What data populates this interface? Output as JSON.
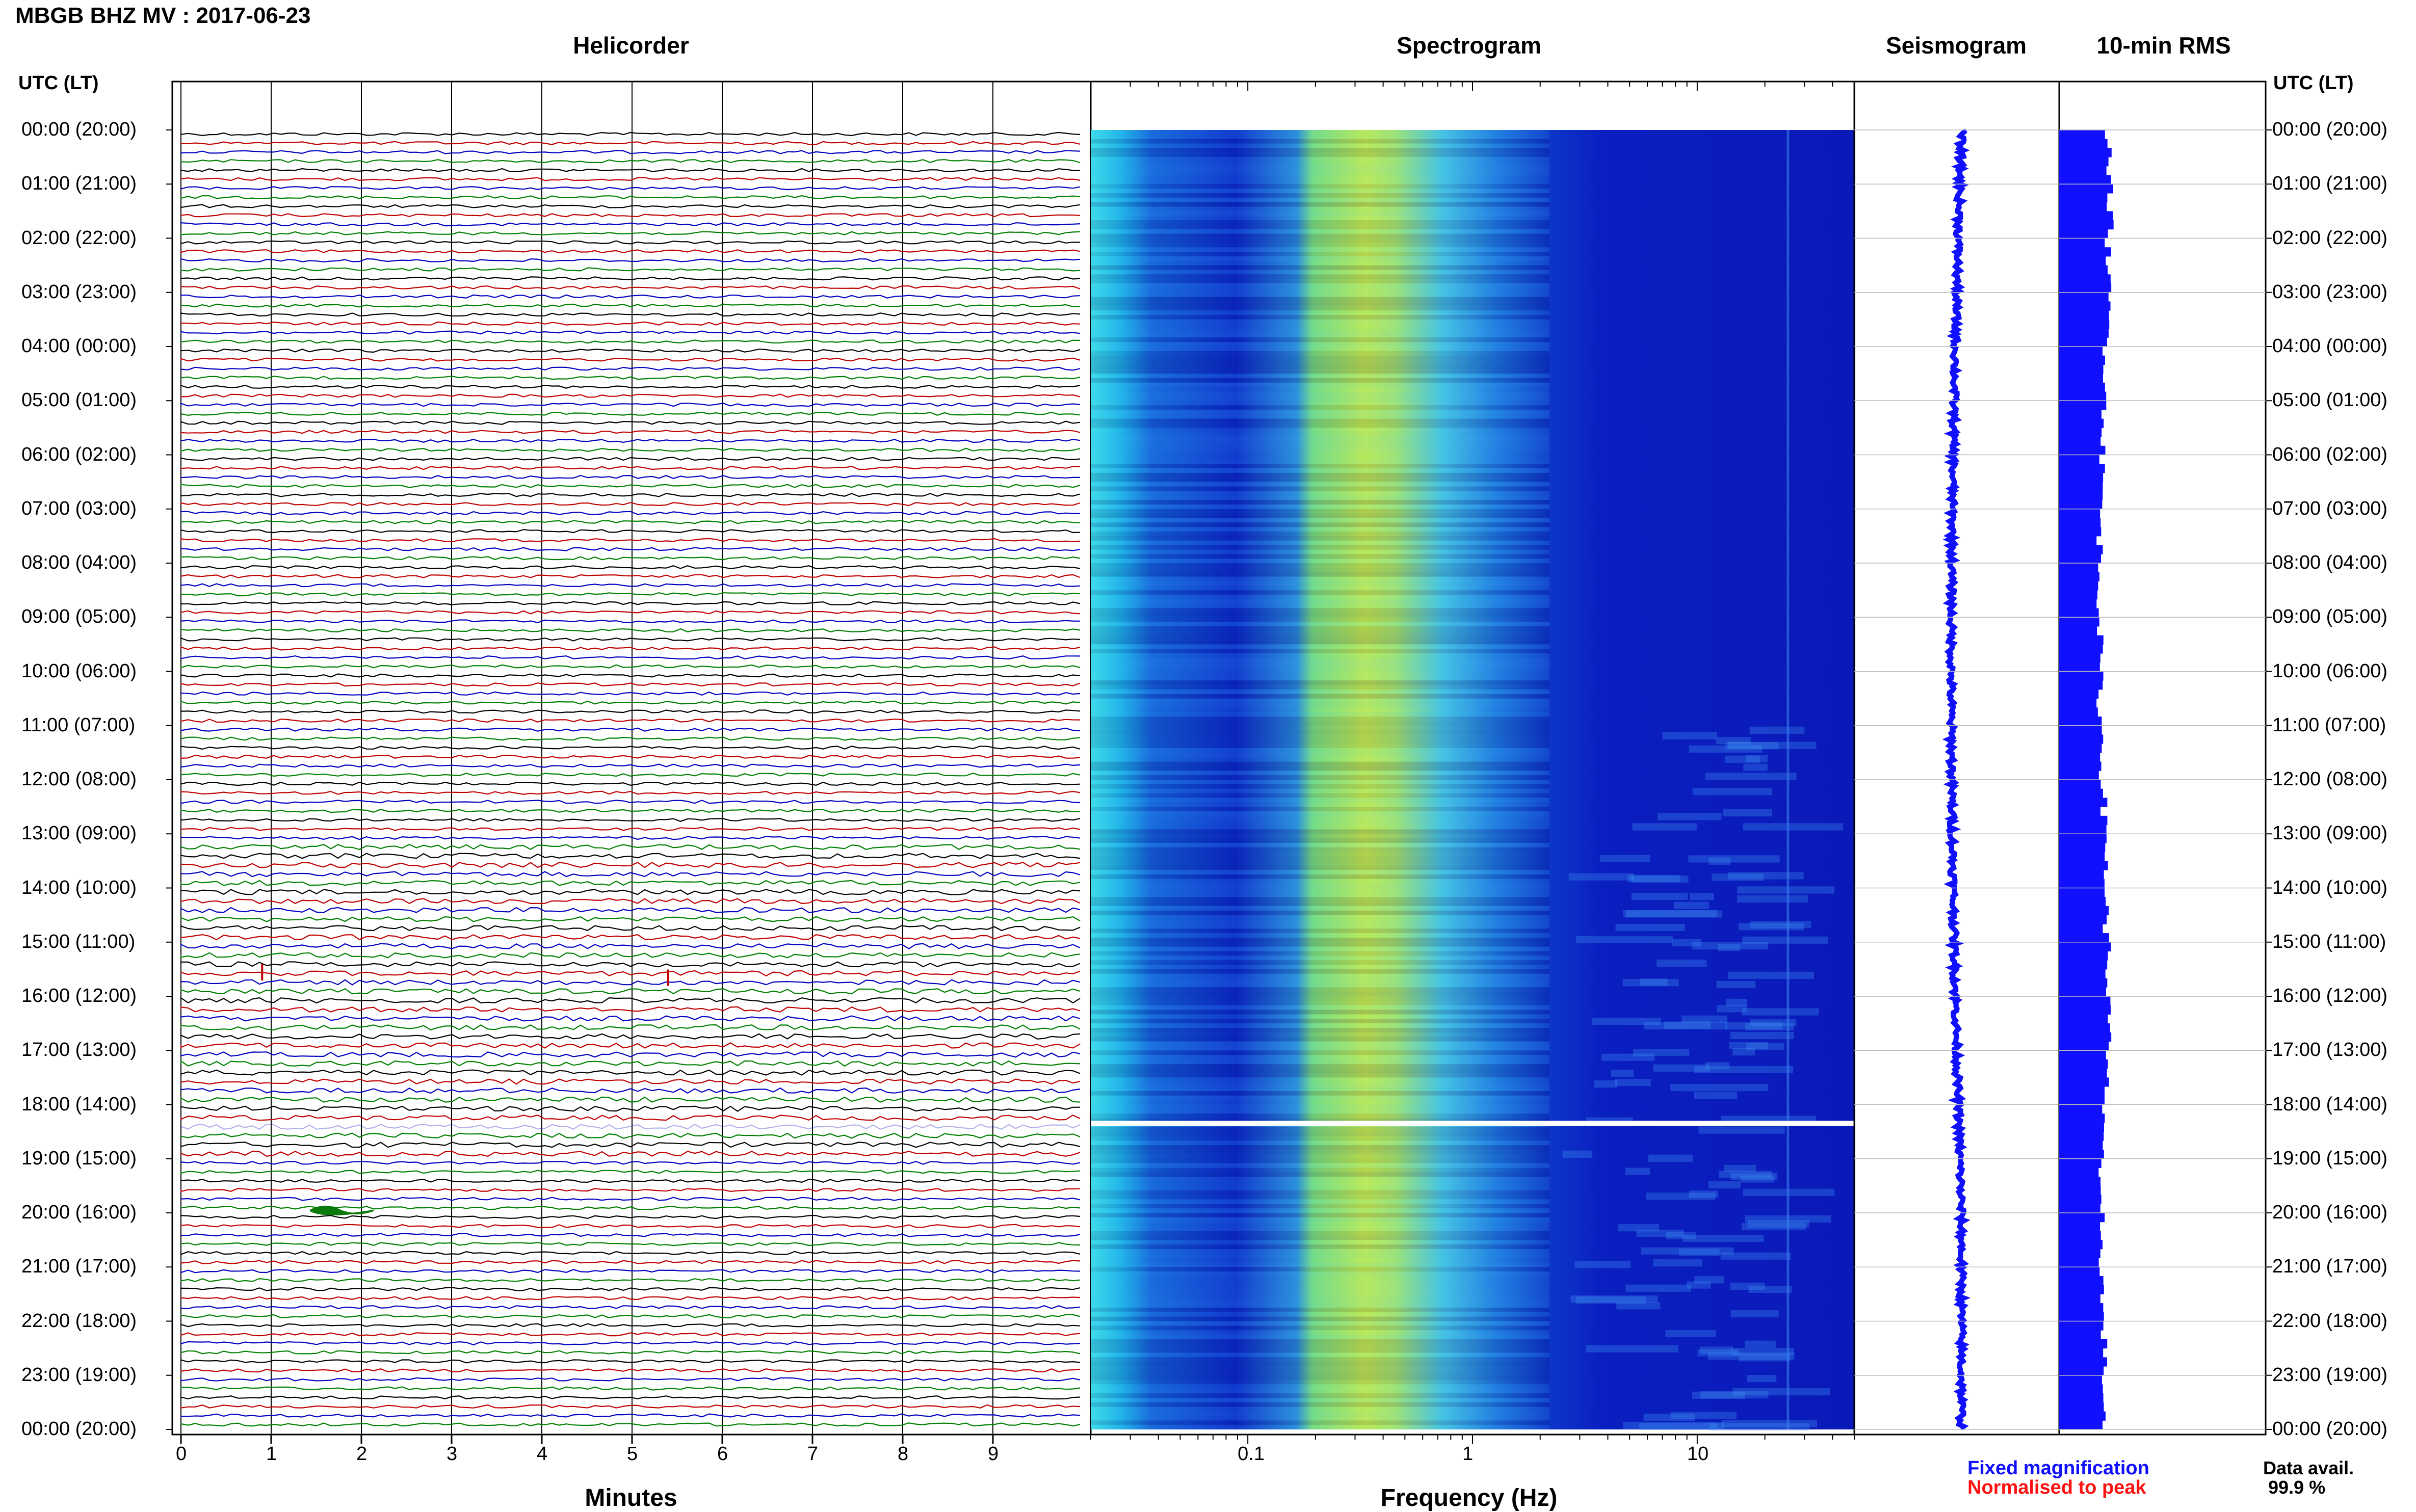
{
  "header": {
    "title": "MBGB BHZ MV : 2017-06-23"
  },
  "panels": {
    "helicorder": "Helicorder",
    "spectrogram": "Spectrogram",
    "seismogram": "Seismogram",
    "rms": "10-min RMS"
  },
  "axes": {
    "utc_left": "UTC (LT)",
    "utc_right": "UTC (LT)",
    "minutes_label": "Minutes",
    "frequency_label": "Frequency (Hz)"
  },
  "legend": {
    "fixed": "Fixed magnification",
    "normalised": "Normalised to peak",
    "data_avail_label": "Data avail.",
    "data_avail_value": "99.9 %"
  },
  "colors": {
    "trace_cycle": [
      "#000000",
      "#c00000",
      "#0000c0",
      "#008000"
    ],
    "spectrogram_base": "#0a1fc8",
    "fixed": "#1010ff",
    "normalised": "#ff1010"
  },
  "chart_data": {
    "type": "heatmap",
    "time_labels": [
      "00:00 (20:00)",
      "01:00 (21:00)",
      "02:00 (22:00)",
      "03:00 (23:00)",
      "04:00 (00:00)",
      "05:00 (01:00)",
      "06:00 (02:00)",
      "07:00 (03:00)",
      "08:00 (04:00)",
      "09:00 (05:00)",
      "10:00 (06:00)",
      "11:00 (07:00)",
      "12:00 (08:00)",
      "13:00 (09:00)",
      "14:00 (10:00)",
      "15:00 (11:00)",
      "16:00 (12:00)",
      "17:00 (13:00)",
      "18:00 (14:00)",
      "19:00 (15:00)",
      "20:00 (16:00)",
      "21:00 (17:00)",
      "22:00 (18:00)",
      "23:00 (19:00)",
      "00:00 (20:00)"
    ],
    "minutes_ticks": [
      "0",
      "1",
      "2",
      "3",
      "4",
      "5",
      "6",
      "7",
      "8",
      "9"
    ],
    "frequency_ticks": [
      {
        "label": "0.1",
        "value": 0.1
      },
      {
        "label": "1",
        "value": 1
      },
      {
        "label": "10",
        "value": 10
      }
    ],
    "frequency_range_hz": [
      0.02,
      50
    ],
    "minutes_range": [
      0,
      10
    ],
    "traces_per_hour": 6,
    "peak_frequency_hz": 0.35,
    "data_gap_utc_hour": 18.3,
    "events": [
      {
        "hour": 15.5,
        "minute": 0.9
      },
      {
        "hour": 15.6,
        "minute": 5.4
      },
      {
        "hour": 19.9,
        "minute": 1.6
      }
    ],
    "rms_per_hour": [
      1.2,
      1.25,
      1.2,
      1.2,
      1.15,
      1.1,
      1.05,
      1.0,
      1.0,
      1.0,
      1.0,
      1.05,
      1.1,
      1.15,
      1.15,
      1.2,
      1.2,
      1.15,
      1.1,
      0.95,
      1.05,
      1.05,
      1.1,
      1.1
    ]
  }
}
